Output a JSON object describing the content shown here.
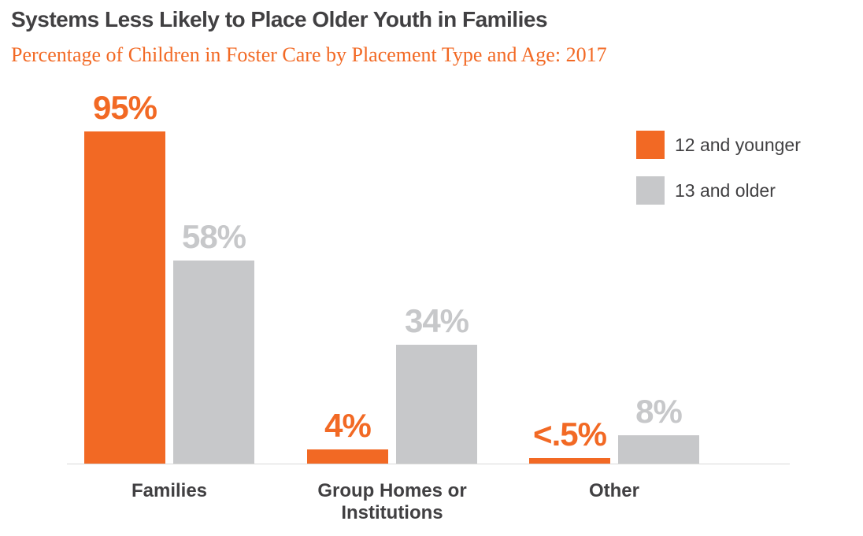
{
  "header": {
    "title": "Systems Less Likely to Place Older Youth in Families",
    "subtitle": "Percentage of Children in Foster Care by Placement Type and Age: 2017"
  },
  "colors": {
    "orange": "#F26924",
    "gray": "#C7C8CA",
    "text_dark": "#414042",
    "axis_line": "#D8D9D8"
  },
  "legend": {
    "items": [
      {
        "label": "12 and younger",
        "color": "#F26924"
      },
      {
        "label": "13 and older",
        "color": "#C7C8CA"
      }
    ]
  },
  "chart_data": {
    "type": "bar",
    "title": "Systems Less Likely to Place Older Youth in Families",
    "subtitle": "Percentage of Children in Foster Care by Placement Type and Age: 2017",
    "categories": [
      "Families",
      "Group Homes or Institutions",
      "Other"
    ],
    "series": [
      {
        "name": "12 and younger",
        "color": "#F26924",
        "values": [
          95,
          4,
          0.4
        ],
        "labels": [
          "95%",
          "4%",
          "<.5%"
        ]
      },
      {
        "name": "13 and older",
        "color": "#C7C8CA",
        "values": [
          58,
          34,
          8
        ],
        "labels": [
          "58%",
          "34%",
          "8%"
        ]
      }
    ],
    "xlabel": "",
    "ylabel": "",
    "ylim": [
      0,
      100
    ],
    "grid": false,
    "legend_position": "top-right"
  }
}
